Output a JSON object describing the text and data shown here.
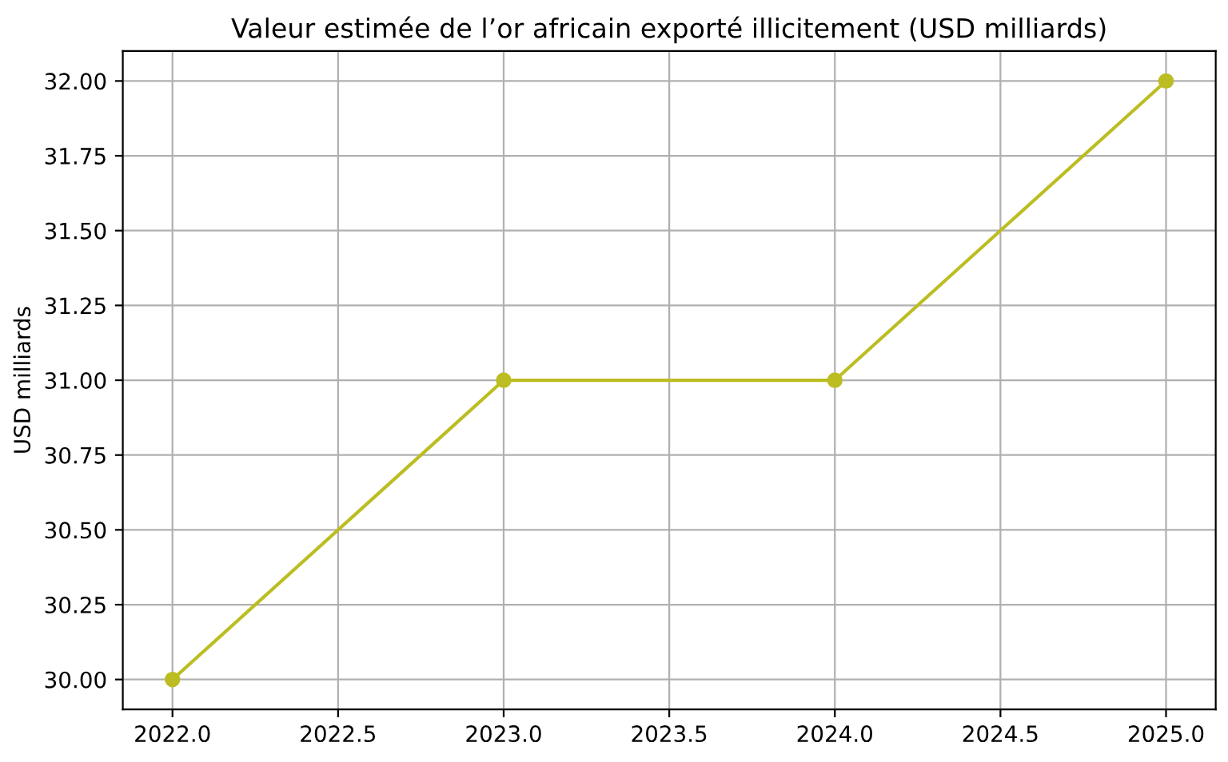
{
  "chart_data": {
    "type": "line",
    "title": "Valeur estimée de l’or africain exporté illicitement (USD milliards)",
    "ylabel": "USD milliards",
    "x": [
      2022,
      2023,
      2024,
      2025
    ],
    "series": [
      {
        "color": "#bcbd22",
        "values": [
          30,
          31,
          31,
          32
        ]
      }
    ],
    "xlim": [
      2021.85,
      2025.15
    ],
    "ylim": [
      29.9,
      32.1
    ],
    "xticks": [
      {
        "value": 2022,
        "label": "2022.0"
      },
      {
        "value": 2022.5,
        "label": "2022.5"
      },
      {
        "value": 2023,
        "label": "2023.0"
      },
      {
        "value": 2023.5,
        "label": "2023.5"
      },
      {
        "value": 2024,
        "label": "2024.0"
      },
      {
        "value": 2024.5,
        "label": "2024.5"
      },
      {
        "value": 2025,
        "label": "2025.0"
      }
    ],
    "yticks": [
      {
        "value": 30,
        "label": "30.00"
      },
      {
        "value": 30.25,
        "label": "30.25"
      },
      {
        "value": 30.5,
        "label": "30.50"
      },
      {
        "value": 30.75,
        "label": "30.75"
      },
      {
        "value": 31,
        "label": "31.00"
      },
      {
        "value": 31.25,
        "label": "31.25"
      },
      {
        "value": 31.5,
        "label": "31.50"
      },
      {
        "value": 31.75,
        "label": "31.75"
      },
      {
        "value": 32,
        "label": "32.00"
      }
    ],
    "grid": true,
    "marker": "circle",
    "line_style": "solid"
  }
}
